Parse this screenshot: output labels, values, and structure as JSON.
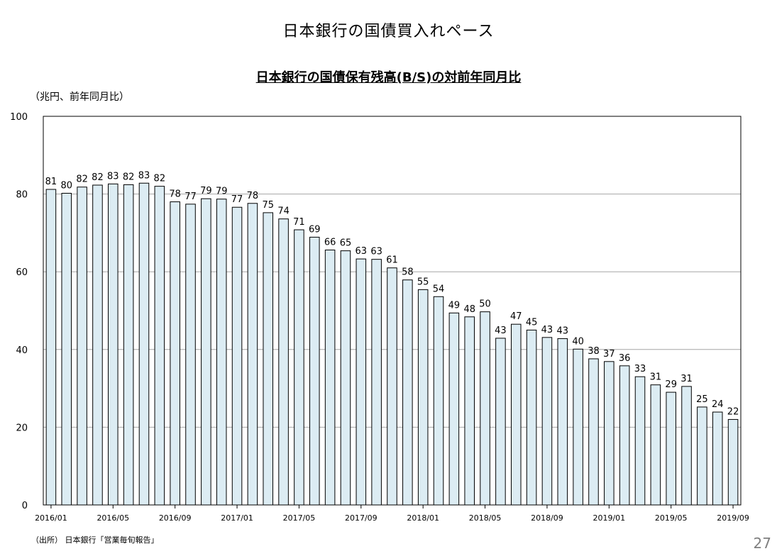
{
  "slide_title": "日本銀行の国債買入れペース",
  "unit_label": "（兆円、前年同月比）",
  "source_note": "（出所） 日本銀行「営業毎旬報告」",
  "page_number": "27",
  "colors": {
    "bar_fill": "#dcecf3",
    "bar_stroke": "#000000",
    "grid": "#a6a6a6"
  },
  "chart_data": {
    "type": "bar",
    "title": "日本銀行の国債保有残高(B/S)の対前年同月比",
    "xlabel": "",
    "ylabel": "",
    "ylim": [
      0,
      100
    ],
    "y_ticks": [
      "0",
      "20",
      "40",
      "60",
      "80",
      "100"
    ],
    "grid": true,
    "categories": [
      "2016/01",
      "2016/02",
      "2016/03",
      "2016/04",
      "2016/05",
      "2016/06",
      "2016/07",
      "2016/08",
      "2016/09",
      "2016/10",
      "2016/11",
      "2016/12",
      "2017/01",
      "2017/02",
      "2017/03",
      "2017/04",
      "2017/05",
      "2017/06",
      "2017/07",
      "2017/08",
      "2017/09",
      "2017/10",
      "2017/11",
      "2017/12",
      "2018/01",
      "2018/02",
      "2018/03",
      "2018/04",
      "2018/05",
      "2018/06",
      "2018/07",
      "2018/08",
      "2018/09",
      "2018/10",
      "2018/11",
      "2018/12",
      "2019/01",
      "2019/02",
      "2019/03",
      "2019/04",
      "2019/05",
      "2019/06",
      "2019/07",
      "2019/08",
      "2019/09"
    ],
    "values": [
      81.2,
      80.2,
      81.8,
      82.3,
      82.6,
      82.4,
      82.8,
      82.0,
      78.0,
      77.4,
      78.8,
      78.7,
      76.6,
      77.6,
      75.2,
      73.6,
      70.8,
      68.9,
      65.6,
      65.4,
      63.3,
      63.2,
      61.0,
      57.9,
      55.4,
      53.6,
      49.4,
      48.4,
      49.7,
      42.9,
      46.5,
      45.0,
      43.1,
      42.8,
      40.1,
      37.6,
      36.9,
      35.8,
      33.0,
      30.9,
      29.0,
      30.5,
      25.2,
      23.9,
      22.0
    ],
    "data_labels": [
      "81",
      "80",
      "82",
      "82",
      "83",
      "82",
      "83",
      "82",
      "78",
      "77",
      "79",
      "79",
      "77",
      "78",
      "75",
      "74",
      "71",
      "69",
      "66",
      "65",
      "63",
      "63",
      "61",
      "58",
      "55",
      "54",
      "49",
      "48",
      "50",
      "43",
      "47",
      "45",
      "43",
      "43",
      "40",
      "38",
      "37",
      "36",
      "33",
      "31",
      "29",
      "31",
      "25",
      "24",
      "22"
    ],
    "x_tick_labels": [
      "2016/01",
      "2016/05",
      "2016/09",
      "2017/01",
      "2017/05",
      "2017/09",
      "2018/01",
      "2018/05",
      "2018/09",
      "2019/01",
      "2019/05",
      "2019/09"
    ]
  }
}
